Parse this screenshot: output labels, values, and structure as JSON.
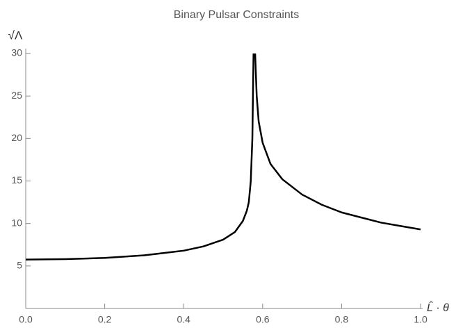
{
  "chart_data": {
    "type": "line",
    "title": "Binary Pulsar Constraints",
    "x_label": "L̂ · θ",
    "y_label": "√Λ",
    "x": [
      0,
      0.1,
      0.2,
      0.3,
      0.4,
      0.45,
      0.5,
      0.53,
      0.55,
      0.56,
      0.565,
      0.57,
      0.574,
      0.577,
      0.581,
      0.585,
      0.59,
      0.6,
      0.62,
      0.65,
      0.7,
      0.75,
      0.8,
      0.85,
      0.9,
      0.95,
      1.0
    ],
    "series": [
      {
        "color": "#000000",
        "values": [
          5.75,
          5.8,
          5.95,
          6.25,
          6.8,
          7.3,
          8.1,
          9,
          10.3,
          11.5,
          12.5,
          15,
          20,
          30,
          30,
          25,
          22,
          19.5,
          17,
          15.2,
          13.4,
          12.2,
          11.3,
          10.7,
          10.1,
          9.7,
          9.3
        ]
      }
    ],
    "xlim": [
      0,
      1.0
    ],
    "ylim": [
      0,
      30
    ],
    "xticks": [
      {
        "value": 0,
        "label": "0.0"
      },
      0.2,
      0.4,
      0.6,
      0.8,
      {
        "value": 1.0,
        "label": "1.0"
      }
    ],
    "yticks": [
      5,
      10,
      15,
      20,
      25,
      30
    ]
  }
}
